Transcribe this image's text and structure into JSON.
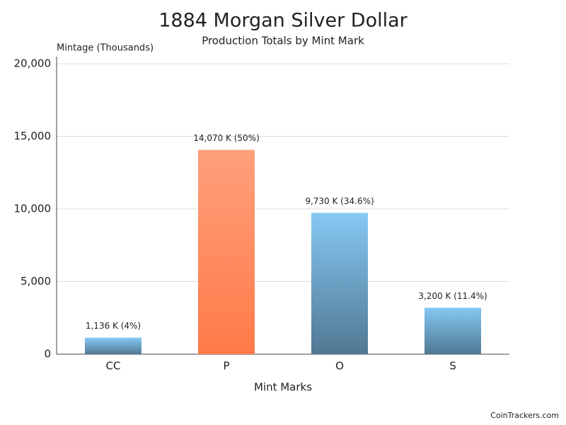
{
  "chart_data": {
    "type": "bar",
    "title": "1884 Morgan Silver Dollar",
    "subtitle": "Production Totals by Mint Mark",
    "y_label": "Mintage (Thousands)",
    "x_label": "Mint Marks",
    "credit": "CoinTrackers.com",
    "categories": [
      "CC",
      "P",
      "O",
      "S"
    ],
    "values": [
      1136,
      14070,
      9730,
      3200
    ],
    "value_labels": [
      "1,136 K (4%)",
      "14,070 K (50%)",
      "9,730 K (34.6%)",
      "3,200 K (11.4%)"
    ],
    "colors": [
      "#86c8f4",
      "#ffa07c",
      "#86c8f4",
      "#86c8f4"
    ],
    "ylim": [
      0,
      20000
    ],
    "yticks": [
      0,
      {
        "value": 5000,
        "label": "5,000"
      },
      {
        "value": 10000,
        "label": "10,000"
      },
      {
        "value": 15000,
        "label": "15,000"
      },
      {
        "value": 20000,
        "label": "20,000"
      }
    ],
    "grid": true
  }
}
